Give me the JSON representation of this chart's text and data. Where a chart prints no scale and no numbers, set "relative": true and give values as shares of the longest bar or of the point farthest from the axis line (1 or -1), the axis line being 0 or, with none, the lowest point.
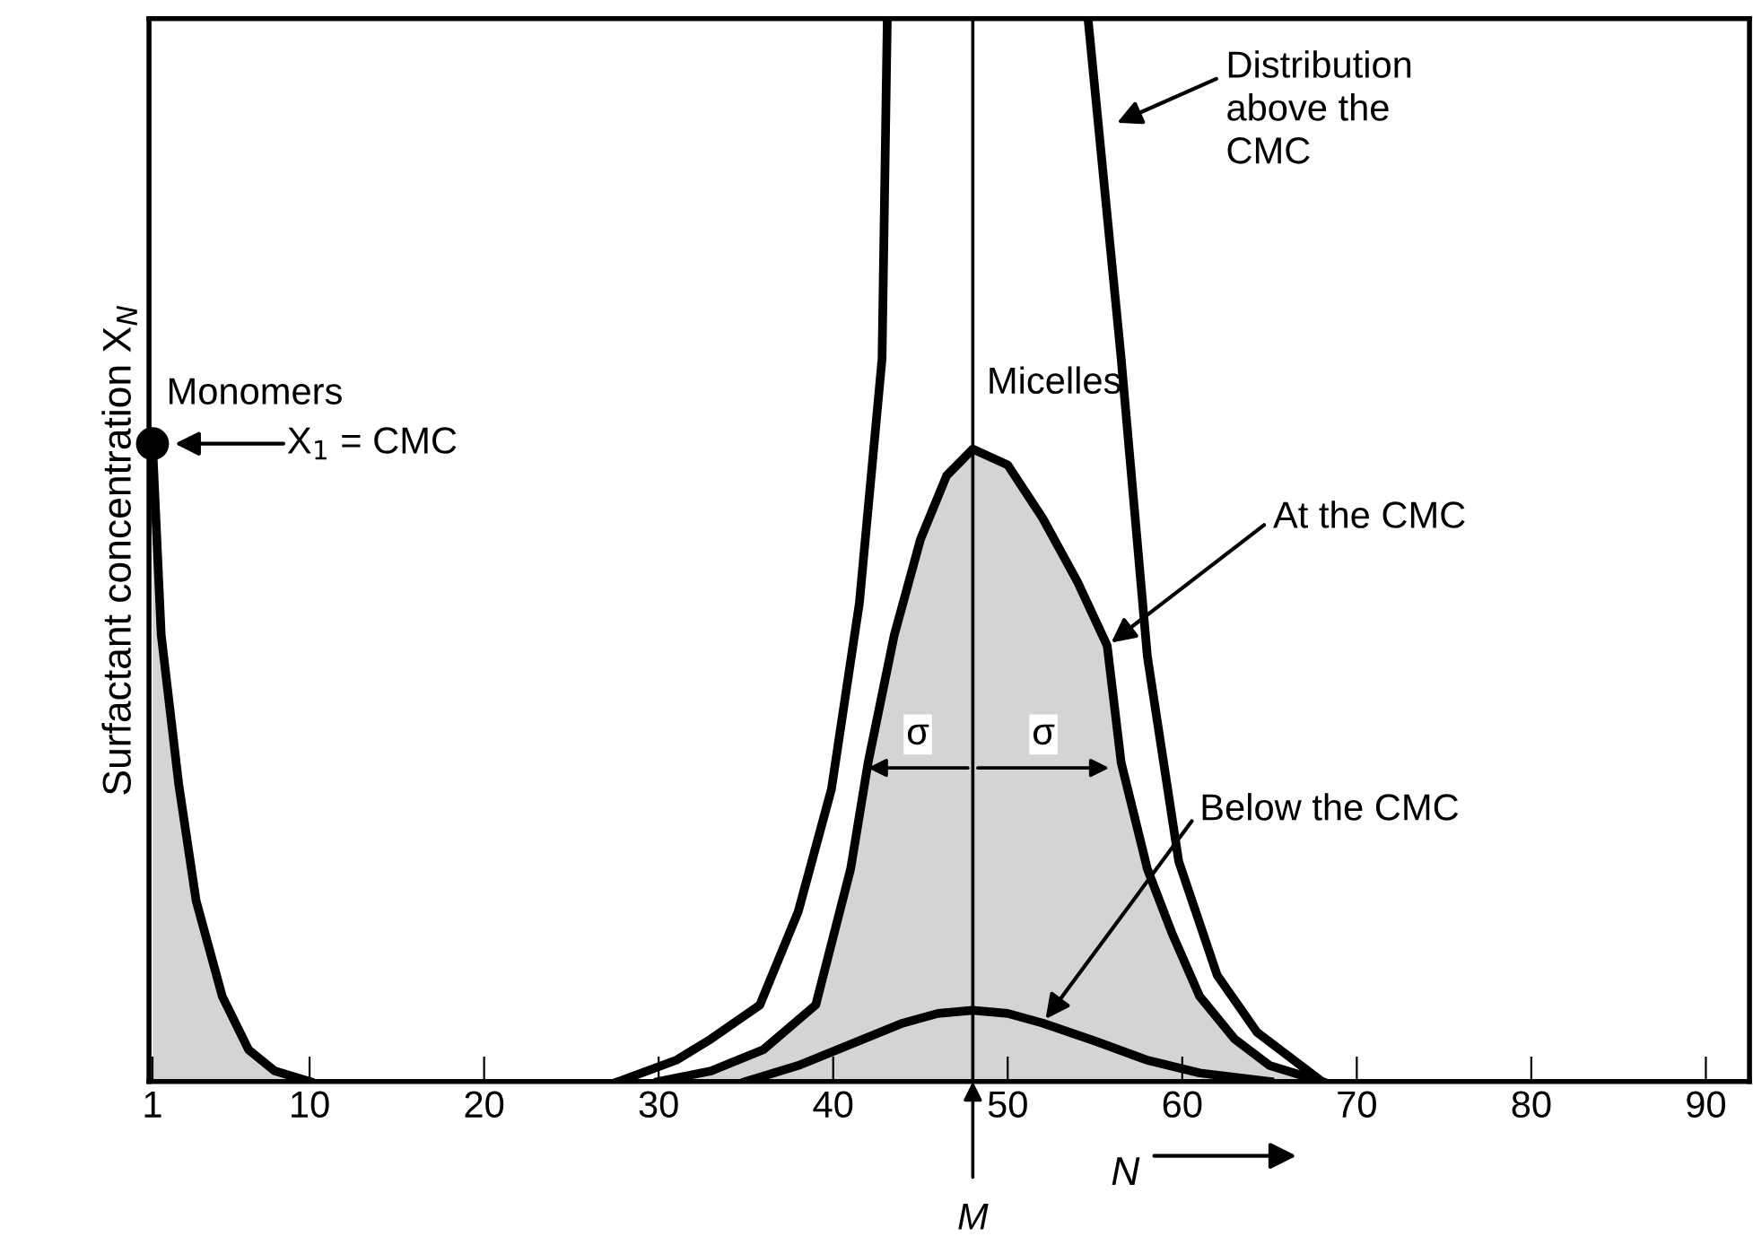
{
  "chart_data": {
    "type": "line",
    "relative": true,
    "xlabel": "N",
    "ylabel": "Surfactant concentration X$_{N}$",
    "xlim": [
      0.8,
      92.5
    ],
    "xticks": [
      1,
      10,
      20,
      30,
      40,
      50,
      60,
      70,
      80,
      90
    ],
    "grid": false,
    "marker": "none",
    "line_style": "solid",
    "series": [
      {
        "type": "area",
        "color": "#d4d4d4",
        "x": [
          1,
          1.5,
          2.5,
          3.5,
          5,
          6.5,
          8,
          10
        ],
        "values": [
          0.6,
          0.42,
          0.28,
          0.17,
          0.08,
          0.03,
          0.01,
          0
        ]
      },
      {
        "type": "area",
        "color": "#d4d4d4",
        "x": [
          30,
          33,
          36,
          39,
          41,
          42,
          43.5,
          45,
          46.5,
          48,
          50,
          52,
          54,
          55.7,
          56.5,
          58,
          59.4,
          61,
          63,
          65,
          68
        ],
        "values": [
          0,
          0.01,
          0.03,
          0.072,
          0.2,
          0.3,
          0.42,
          0.51,
          0.57,
          0.595,
          0.58,
          0.53,
          0.47,
          0.41,
          0.3,
          0.2,
          0.14,
          0.08,
          0.04,
          0.015,
          0
        ]
      },
      {
        "color": "#000000",
        "x": [
          35,
          38,
          41,
          44,
          46,
          48,
          50,
          52,
          55,
          58,
          61,
          65
        ],
        "values": [
          0,
          0.015,
          0.035,
          0.055,
          0.064,
          0.067,
          0.064,
          0.055,
          0.038,
          0.02,
          0.008,
          0
        ]
      },
      {
        "color": "#000000",
        "x": [
          27.7,
          31,
          33,
          35.8,
          38,
          39.9,
          41.5,
          42.8,
          43.1,
          48,
          54.6,
          56.5,
          58,
          59.8,
          62,
          64.3,
          68
        ],
        "values": [
          0,
          0.02,
          0.04,
          0.072,
          0.16,
          0.275,
          0.45,
          0.68,
          1,
          null,
          1,
          0.68,
          0.4,
          0.207,
          0.1,
          0.046,
          0
        ]
      },
      {
        "type": "scatter",
        "color": "#000000",
        "marker": "circle",
        "x": [
          1
        ],
        "values": [
          0.6
        ]
      }
    ],
    "ref_lines": [
      {
        "axis": "x",
        "value": 48,
        "label": "Micelles",
        "color": "#000000"
      }
    ],
    "annotations": [
      {
        "text": "Monomers",
        "x": 1,
        "y": 0.6
      },
      "X$_{1}$ = CMC",
      "Distribution\nabove the\nCMC",
      {
        "text": "At the CMC",
        "x": 55.7,
        "y": 0.41
      },
      {
        "text": "Below the CMC",
        "x": 52,
        "y": 0.055
      },
      {
        "text": "σ",
        "x": 41.7,
        "y": 0.295
      },
      {
        "text": "σ",
        "x": 56.1,
        "y": 0.295
      },
      {
        "text": "M",
        "x": 48,
        "y": 0
      }
    ]
  }
}
